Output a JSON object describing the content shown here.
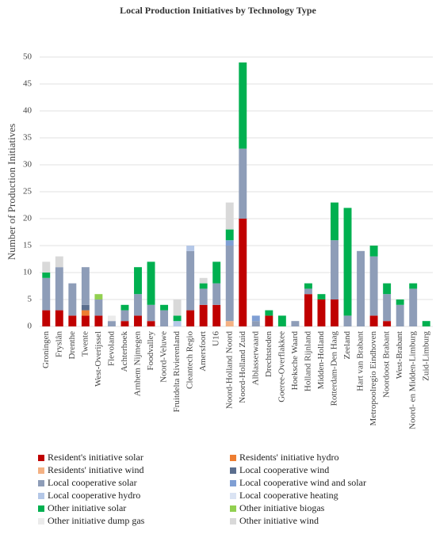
{
  "chart_data": {
    "type": "stacked-bar",
    "title": "Local Production Initiatives by Technology Type",
    "y_label": "Number of Production Initiatives",
    "categories": [
      "Groningen",
      "Fryslân",
      "Drenthe",
      "Twente",
      "West-Overijssel",
      "Flevoland",
      "Achterhoek",
      "Arnhem Nijmegen",
      "Foodvalley",
      "Noord-Veluwe",
      "Fruitdelta Rivierenland",
      "Cleantech Regio",
      "Amersfoort",
      "U16",
      "Noord-Holland Noord",
      "Noord-Holland Zuid",
      "Alblasserwaard",
      "Drechtsteden",
      "Goeree-Overflakkee",
      "Hoeksche Waard",
      "Holland Rijnland",
      "Midden-Holland",
      "Rotterdam-Den Haag",
      "Zeeland",
      "Hart van Brabant",
      "Metropoolregio Eindhoven",
      "Noordoost Brabant",
      "West-Brabant",
      "Noord- en Midden-Limburg",
      "Zuid-Limburg"
    ],
    "series": [
      {
        "name": "Resident's initiative solar",
        "color": "#c00000",
        "values": [
          3,
          3,
          2,
          2,
          2,
          0,
          1,
          2,
          1,
          0,
          0,
          3,
          4,
          4,
          0,
          20,
          0,
          2,
          0,
          0,
          6,
          5,
          5,
          0,
          0,
          2,
          1,
          0,
          0,
          0
        ]
      },
      {
        "name": "Residents' initiative hydro",
        "color": "#ed7d31",
        "values": [
          0,
          0,
          0,
          1,
          0,
          0,
          0,
          0,
          0,
          0,
          0,
          0,
          0,
          0,
          0,
          0,
          0,
          0,
          0,
          0,
          0,
          0,
          0,
          0,
          0,
          0,
          0,
          0,
          0,
          0
        ]
      },
      {
        "name": "Residents' initiative wind",
        "color": "#f4b183",
        "values": [
          0,
          0,
          0,
          0,
          0,
          0,
          0,
          0,
          0,
          0,
          0,
          0,
          0,
          0,
          1,
          0,
          0,
          0,
          0,
          0,
          0,
          0,
          0,
          0,
          0,
          0,
          0,
          0,
          0,
          0
        ]
      },
      {
        "name": "Local cooperative wind",
        "color": "#5b6e8e",
        "values": [
          0,
          0,
          0,
          1,
          0,
          0,
          0,
          0,
          0,
          0,
          0,
          0,
          0,
          0,
          0,
          0,
          0,
          0,
          0,
          0,
          0,
          0,
          0,
          0,
          0,
          0,
          0,
          0,
          0,
          0
        ]
      },
      {
        "name": "Local cooperative solar",
        "color": "#8e9db8",
        "values": [
          6,
          8,
          6,
          7,
          3,
          1,
          2,
          4,
          3,
          3,
          0,
          11,
          3,
          4,
          14,
          13,
          1,
          0,
          0,
          1,
          1,
          0,
          11,
          2,
          14,
          11,
          5,
          4,
          7,
          0
        ]
      },
      {
        "name": "Local cooperative wind and solar",
        "color": "#7f9fd4",
        "values": [
          0,
          0,
          0,
          0,
          0,
          0,
          0,
          0,
          0,
          0,
          0,
          0,
          0,
          0,
          1,
          0,
          1,
          0,
          0,
          0,
          0,
          0,
          0,
          0,
          0,
          0,
          0,
          0,
          0,
          0
        ]
      },
      {
        "name": "Local cooperative hydro",
        "color": "#b4c7e7",
        "values": [
          0,
          0,
          0,
          0,
          0,
          0,
          0,
          0,
          0,
          0,
          1,
          1,
          0,
          0,
          0,
          0,
          0,
          0,
          0,
          0,
          0,
          0,
          0,
          0,
          0,
          0,
          0,
          0,
          0,
          0
        ]
      },
      {
        "name": "Local cooperative heating",
        "color": "#dae3f3",
        "values": [
          0,
          0,
          0,
          0,
          0,
          0,
          0,
          0,
          0,
          0,
          0,
          0,
          0,
          0,
          0,
          0,
          0,
          0,
          0,
          0,
          0,
          0,
          0,
          0,
          0,
          0,
          0,
          0,
          0,
          0
        ]
      },
      {
        "name": "Other initiative solar",
        "color": "#00b050",
        "values": [
          1,
          0,
          0,
          0,
          0,
          0,
          1,
          5,
          8,
          1,
          1,
          0,
          1,
          4,
          2,
          16,
          0,
          1,
          2,
          0,
          1,
          1,
          7,
          20,
          0,
          2,
          2,
          1,
          1,
          1
        ]
      },
      {
        "name": "Other initiative biogas",
        "color": "#92d050",
        "values": [
          0,
          0,
          0,
          0,
          1,
          0,
          0,
          0,
          0,
          0,
          0,
          0,
          0,
          0,
          0,
          0,
          0,
          0,
          0,
          0,
          0,
          0,
          0,
          0,
          0,
          0,
          0,
          0,
          0,
          0
        ]
      },
      {
        "name": "Other initiative dump gas",
        "color": "#ebebeb",
        "values": [
          0,
          0,
          0,
          0,
          0,
          1,
          0,
          0,
          0,
          0,
          0,
          0,
          0,
          0,
          0,
          0,
          0,
          0,
          0,
          0,
          0,
          0,
          0,
          0,
          0,
          0,
          0,
          0,
          0,
          0
        ]
      },
      {
        "name": "Other initiative wind",
        "color": "#d9d9d9",
        "values": [
          2,
          2,
          0,
          0,
          0,
          0,
          0,
          0,
          0,
          0,
          3,
          0,
          1,
          0,
          5,
          0,
          0,
          0,
          0,
          0,
          0,
          0,
          0,
          0,
          0,
          0,
          0,
          0,
          0,
          0
        ]
      }
    ],
    "ylim": [
      0,
      50
    ],
    "yticks": [
      0,
      5,
      10,
      15,
      20,
      25,
      30,
      35,
      40,
      45,
      50
    ],
    "grid": true
  }
}
